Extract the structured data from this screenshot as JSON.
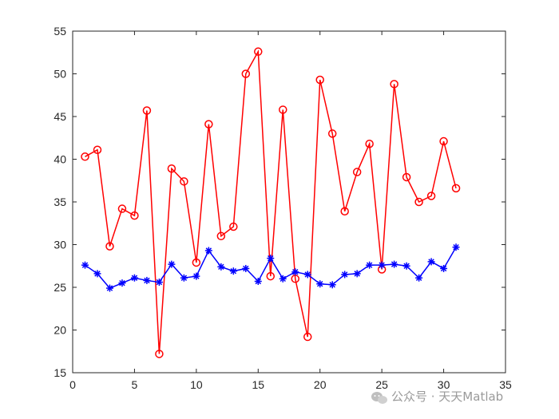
{
  "watermark": {
    "text": "公众号 · 天天Matlab",
    "icon": "wechat-icon",
    "color": "#9a9a9a"
  },
  "chart_data": {
    "type": "line",
    "xlim": [
      0,
      35
    ],
    "ylim": [
      15,
      55
    ],
    "xticks": [
      0,
      5,
      10,
      15,
      20,
      25,
      30,
      35
    ],
    "yticks": [
      15,
      20,
      25,
      30,
      35,
      40,
      45,
      50,
      55
    ],
    "grid": false,
    "legend": "none",
    "x": [
      1,
      2,
      3,
      4,
      5,
      6,
      7,
      8,
      9,
      10,
      11,
      12,
      13,
      14,
      15,
      16,
      17,
      18,
      19,
      20,
      21,
      22,
      23,
      24,
      25,
      26,
      27,
      28,
      29,
      30,
      31
    ],
    "series": [
      {
        "color": "#ff0000",
        "marker": "circle",
        "values": [
          40.3,
          41.1,
          29.8,
          34.2,
          33.4,
          45.7,
          17.2,
          38.9,
          37.4,
          27.9,
          44.1,
          31.0,
          32.1,
          50.0,
          52.6,
          26.3,
          45.8,
          26.0,
          19.2,
          49.3,
          43.0,
          33.9,
          38.5,
          41.8,
          27.1,
          48.8,
          37.9,
          35.0,
          35.7,
          42.1,
          36.6
        ]
      },
      {
        "color": "#0000ff",
        "marker": "asterisk",
        "values": [
          27.6,
          26.6,
          24.9,
          25.5,
          26.1,
          25.8,
          25.6,
          27.7,
          26.1,
          26.3,
          29.3,
          27.4,
          26.9,
          27.2,
          25.7,
          28.4,
          26.0,
          26.8,
          26.5,
          25.4,
          25.3,
          26.5,
          26.6,
          27.6,
          27.6,
          27.7,
          27.5,
          26.1,
          28.0,
          27.2,
          29.7
        ]
      }
    ]
  }
}
